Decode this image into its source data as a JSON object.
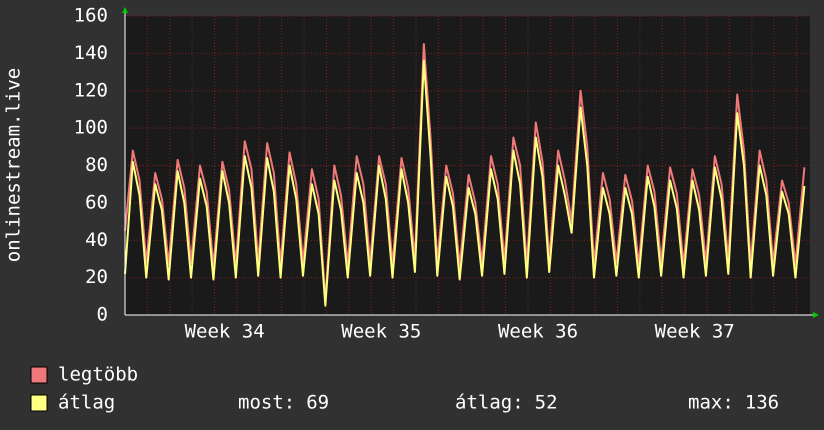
{
  "chart_data": {
    "type": "line",
    "y_label": "onlinestream.live",
    "x": [
      0,
      0.35,
      0.65,
      0.95,
      1.35,
      1.65,
      1.95,
      2.35,
      2.65,
      2.95,
      3.35,
      3.65,
      3.95,
      4.35,
      4.65,
      4.95,
      5.35,
      5.65,
      5.95,
      6.35,
      6.65,
      6.95,
      7.35,
      7.65,
      7.95,
      8.35,
      8.65,
      8.95,
      9.35,
      9.65,
      9.95,
      10.35,
      10.65,
      10.95,
      11.35,
      11.65,
      11.95,
      12.35,
      12.65,
      12.95,
      13.35,
      13.65,
      13.95,
      14.35,
      14.65,
      14.95,
      15.35,
      15.65,
      15.95,
      16.35,
      16.65,
      16.95,
      17.35,
      17.65,
      17.95,
      18.35,
      18.65,
      18.95,
      19.35,
      19.65,
      19.95,
      20.35,
      20.65,
      20.95,
      21.35,
      21.65,
      21.95,
      22.35,
      22.65,
      22.95,
      23.35,
      23.65,
      23.95,
      24.35,
      24.65,
      24.95,
      25.35,
      25.65,
      25.95,
      26.35,
      26.65,
      26.95,
      27.35,
      27.65,
      27.95,
      28.35,
      28.65,
      28.95,
      29.35,
      29.65,
      29.95,
      30.35
    ],
    "series": [
      {
        "name": "legtöbb",
        "color": "#f07878",
        "values": [
          45,
          88,
          72,
          28,
          76,
          62,
          27,
          83,
          68,
          28,
          80,
          66,
          26,
          82,
          67,
          27,
          93,
          78,
          28,
          92,
          76,
          27,
          87,
          70,
          28,
          78,
          62,
          8,
          80,
          64,
          27,
          85,
          70,
          28,
          85,
          70,
          27,
          84,
          68,
          30,
          145,
          95,
          28,
          80,
          65,
          26,
          75,
          60,
          28,
          85,
          70,
          29,
          95,
          80,
          27,
          103,
          82,
          30,
          88,
          72,
          50,
          120,
          90,
          27,
          76,
          62,
          28,
          75,
          61,
          27,
          80,
          66,
          28,
          79,
          65,
          27,
          78,
          64,
          28,
          85,
          70,
          29,
          118,
          88,
          27,
          88,
          72,
          28,
          72,
          60,
          27,
          79
        ]
      },
      {
        "name": "átlag",
        "color": "#ffff80",
        "values": [
          22,
          82,
          64,
          20,
          70,
          56,
          19,
          77,
          60,
          20,
          73,
          58,
          19,
          77,
          60,
          20,
          85,
          68,
          21,
          84,
          66,
          20,
          80,
          62,
          21,
          70,
          54,
          5,
          72,
          56,
          20,
          76,
          60,
          21,
          80,
          62,
          20,
          78,
          60,
          23,
          136,
          85,
          21,
          74,
          58,
          19,
          68,
          54,
          21,
          78,
          62,
          22,
          88,
          70,
          20,
          95,
          74,
          23,
          80,
          64,
          44,
          111,
          80,
          20,
          68,
          54,
          21,
          68,
          54,
          20,
          74,
          58,
          21,
          72,
          57,
          20,
          72,
          56,
          21,
          79,
          62,
          22,
          108,
          80,
          20,
          80,
          64,
          21,
          66,
          54,
          20,
          69
        ]
      }
    ],
    "xlim": [
      0,
      30.6
    ],
    "xticks": [
      {
        "value": 4.45,
        "label": "Week 34"
      },
      {
        "value": 11.45,
        "label": "Week 35"
      },
      {
        "value": 18.45,
        "label": "Week 36"
      },
      {
        "value": 25.45,
        "label": "Week 37"
      }
    ],
    "ylim": [
      0,
      160
    ],
    "yticks": [
      0,
      20,
      40,
      60,
      80,
      100,
      120,
      140,
      160
    ],
    "grid": true,
    "stats": [
      {
        "label": "most:",
        "value": 69
      },
      {
        "label": "átlag:",
        "value": 52
      },
      {
        "label": "max:",
        "value": 136
      }
    ]
  }
}
